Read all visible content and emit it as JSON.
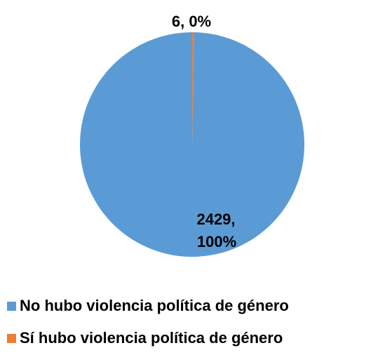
{
  "chart_data": {
    "type": "pie",
    "title": "",
    "categories": [
      "No hubo violencia política de género",
      "Sí hubo violencia política de género"
    ],
    "values": [
      2429,
      6
    ],
    "percent_labels": [
      "100%",
      "0%"
    ],
    "colors": [
      "#5B9BD5",
      "#ED7D31"
    ],
    "data_labels": [
      {
        "line1": "2429,",
        "line2": "100%"
      },
      {
        "line1": "6, 0%",
        "line2": ""
      }
    ],
    "legend_position": "bottom-left"
  }
}
